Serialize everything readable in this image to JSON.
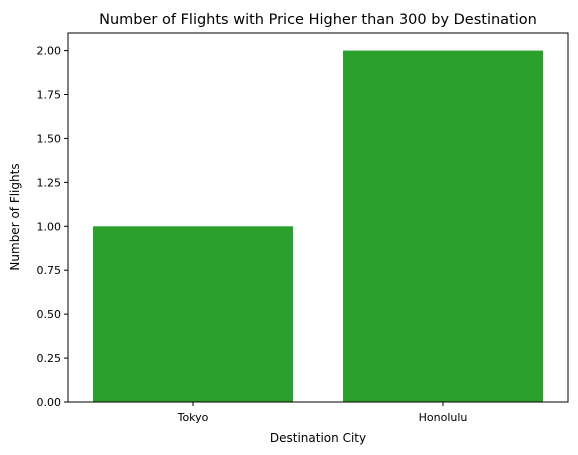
{
  "chart_data": {
    "type": "bar",
    "title": "Number of Flights with Price Higher than 300 by Destination",
    "xlabel": "Destination City",
    "ylabel": "Number of Flights",
    "categories": [
      "Tokyo",
      "Honolulu"
    ],
    "values": [
      1,
      2
    ],
    "ylim": [
      0,
      2.1
    ],
    "yticks": [
      "0.00",
      "0.25",
      "0.50",
      "0.75",
      "1.00",
      "1.25",
      "1.50",
      "1.75",
      "2.00"
    ],
    "bar_color": "#2ca02c",
    "grid": false
  }
}
